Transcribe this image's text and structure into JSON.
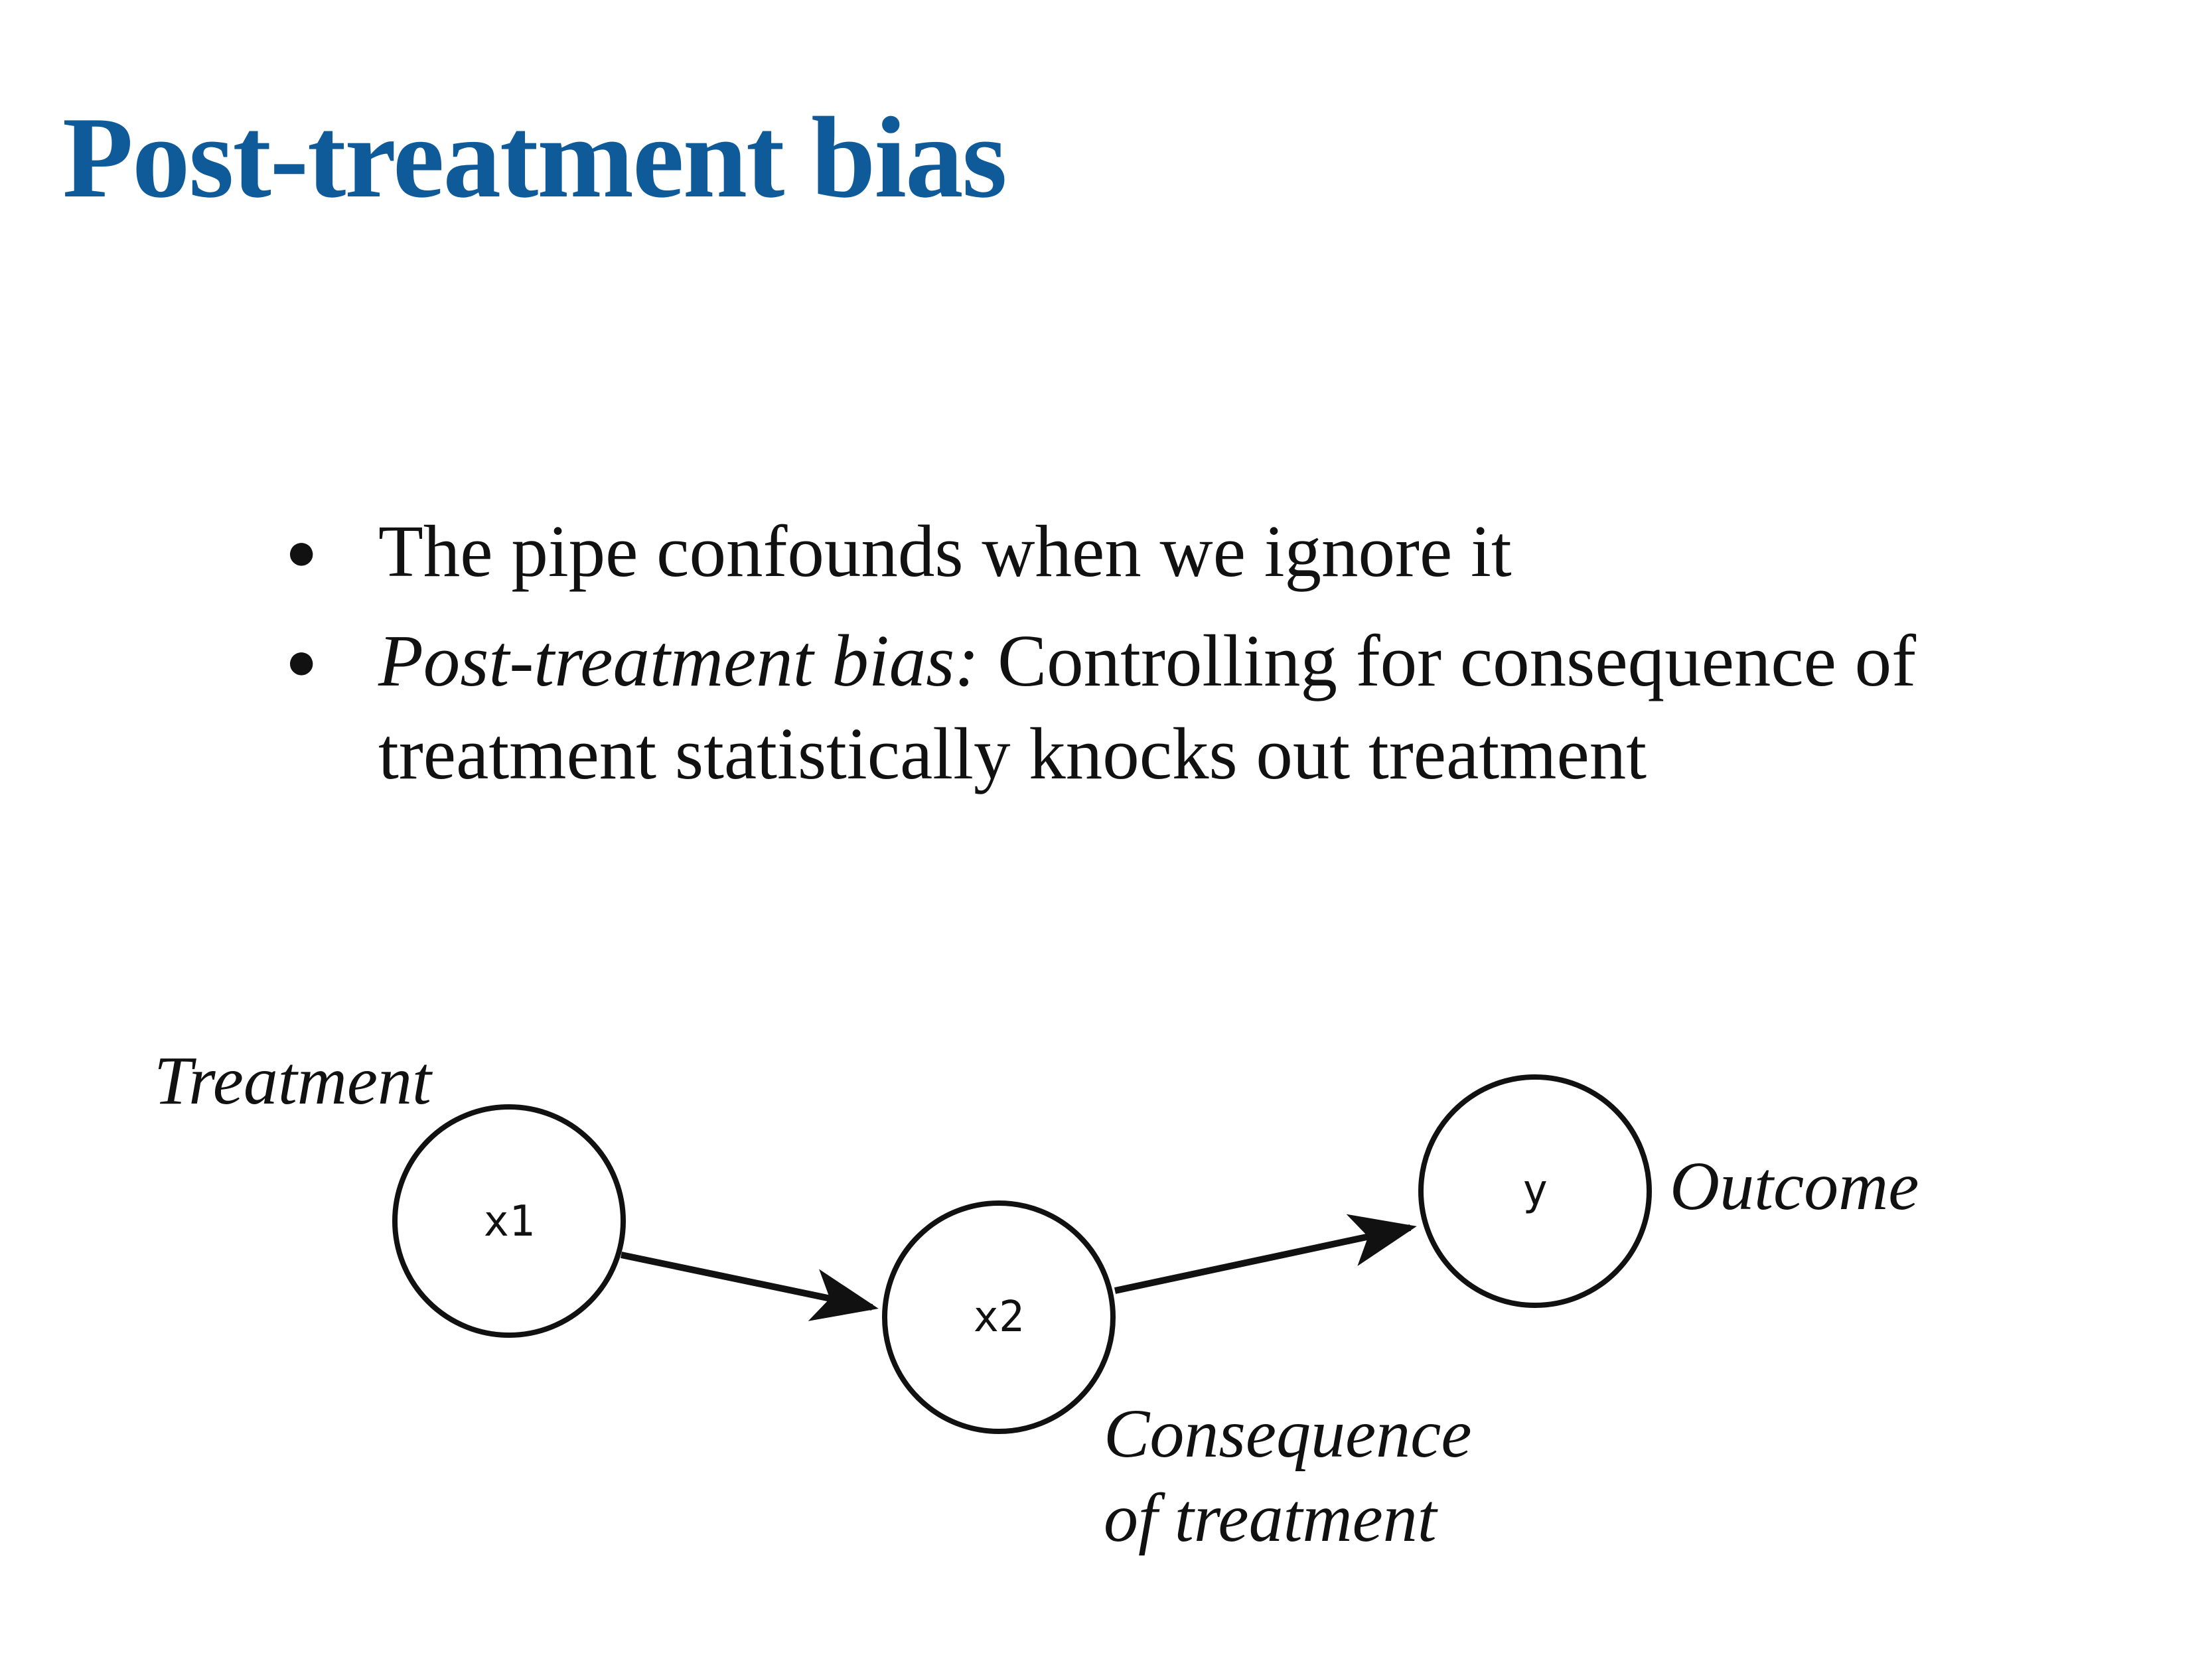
{
  "title": "Post-treatment bias",
  "bullets": [
    {
      "text": "The pipe confounds when we ignore it"
    },
    {
      "emphasis": "Post-treatment bias:",
      "line1": " Controlling for consequence of",
      "line2": "treatment statistically knocks out treatment"
    }
  ],
  "diagram": {
    "nodes": [
      {
        "id": "x1",
        "label": "x1",
        "annotation": "Treatment"
      },
      {
        "id": "x2",
        "label": "x2",
        "annotation_lines": [
          "Consequence",
          "of treatment"
        ]
      },
      {
        "id": "y",
        "label": "y",
        "annotation": "Outcome"
      }
    ],
    "edges": [
      {
        "from": "x1",
        "to": "x2"
      },
      {
        "from": "x2",
        "to": "y"
      }
    ]
  }
}
